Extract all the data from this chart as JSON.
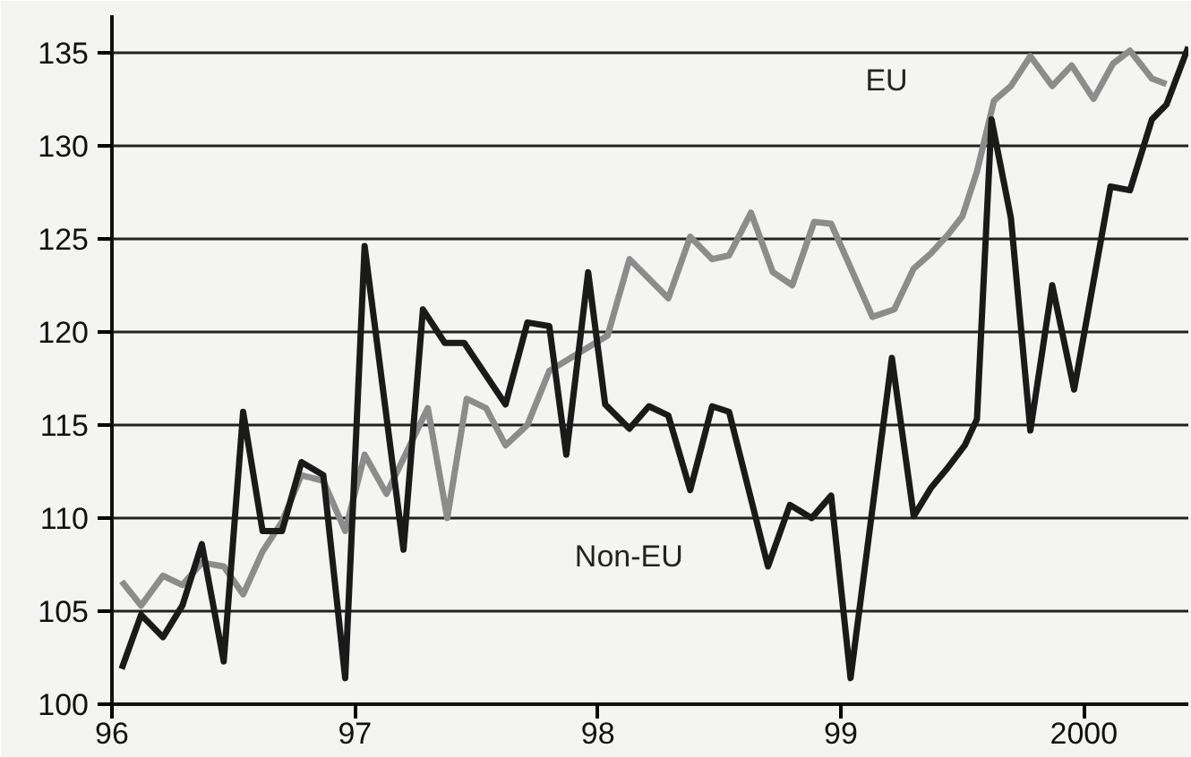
{
  "chart_data": {
    "type": "line",
    "series": [
      {
        "name": "EU",
        "color": "#8c8c8c",
        "x": [
          1996.04,
          1996.12,
          1996.21,
          1996.29,
          1996.37,
          1996.46,
          1996.54,
          1996.62,
          1996.7,
          1996.78,
          1996.87,
          1996.96,
          1997.04,
          1997.13,
          1997.3,
          1997.38,
          1997.46,
          1997.54,
          1997.62,
          1997.71,
          1997.8,
          1998.04,
          1998.13,
          1998.29,
          1998.38,
          1998.47,
          1998.54,
          1998.63,
          1998.72,
          1998.8,
          1998.89,
          1998.96,
          1999.13,
          1999.22,
          1999.3,
          1999.37,
          1999.44,
          1999.5,
          1999.56,
          1999.63,
          1999.7,
          1999.78,
          1999.87,
          1999.95,
          2000.04,
          2000.12,
          2000.19,
          2000.28,
          2000.34
        ],
        "values": [
          106.6,
          105.3,
          106.9,
          106.4,
          107.6,
          107.4,
          105.9,
          108.2,
          109.8,
          112.3,
          112.0,
          109.3,
          113.4,
          111.3,
          115.9,
          110.0,
          116.4,
          115.9,
          113.9,
          115.0,
          117.9,
          119.8,
          123.9,
          121.8,
          125.1,
          123.9,
          124.1,
          126.4,
          123.2,
          122.5,
          125.9,
          125.8,
          120.8,
          121.2,
          123.4,
          124.2,
          125.2,
          126.2,
          128.6,
          132.4,
          133.2,
          134.8,
          133.2,
          134.3,
          132.5,
          134.4,
          135.1,
          133.6,
          133.3
        ]
      },
      {
        "name": "Non-EU",
        "color": "#1a1a1a",
        "x": [
          1996.04,
          1996.12,
          1996.21,
          1996.29,
          1996.37,
          1996.46,
          1996.54,
          1996.62,
          1996.7,
          1996.78,
          1996.87,
          1996.96,
          1997.04,
          1997.2,
          1997.28,
          1997.37,
          1997.45,
          1997.62,
          1997.71,
          1997.8,
          1997.87,
          1997.96,
          1998.03,
          1998.13,
          1998.21,
          1998.29,
          1998.38,
          1998.47,
          1998.54,
          1998.7,
          1998.79,
          1998.88,
          1998.96,
          1999.04,
          1999.21,
          1999.3,
          1999.37,
          1999.44,
          1999.51,
          1999.56,
          1999.62,
          1999.7,
          1999.78,
          1999.87,
          1999.96,
          2000.11,
          2000.19,
          2000.28,
          2000.34,
          2000.43
        ],
        "values": [
          101.9,
          104.8,
          103.6,
          105.3,
          108.6,
          102.3,
          115.7,
          109.3,
          109.3,
          113.0,
          112.3,
          101.4,
          124.6,
          108.3,
          121.2,
          119.4,
          119.4,
          116.1,
          120.5,
          120.3,
          113.4,
          123.2,
          116.1,
          114.8,
          116.0,
          115.5,
          111.5,
          116.0,
          115.7,
          107.4,
          110.7,
          110.0,
          111.2,
          101.4,
          118.6,
          110.1,
          111.6,
          112.7,
          113.9,
          115.3,
          131.4,
          126.1,
          114.7,
          122.5,
          116.9,
          127.8,
          127.6,
          131.4,
          132.2,
          135.3
        ]
      }
    ],
    "xlim": [
      1996,
      2000.43
    ],
    "ylim": [
      100,
      137
    ],
    "xticks": [
      {
        "value": 1996,
        "label": "96"
      },
      {
        "value": 1997,
        "label": "97"
      },
      {
        "value": 1998,
        "label": "98"
      },
      {
        "value": 1999,
        "label": "99"
      },
      {
        "value": 2000,
        "label": "2000"
      }
    ],
    "yticks": [
      100,
      105,
      110,
      115,
      120,
      125,
      130,
      135
    ],
    "grid": "y",
    "line_style": "solid"
  }
}
